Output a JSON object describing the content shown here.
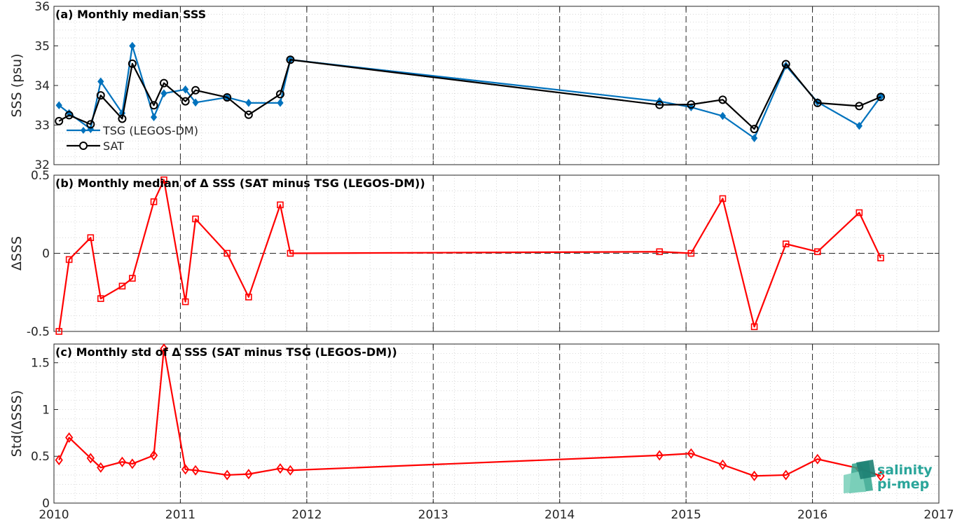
{
  "chart_data": [
    {
      "type": "line",
      "title": "(a) Monthly median SSS",
      "xlabel": "",
      "ylabel": "SSS (psu)",
      "xlim": [
        2010,
        2017
      ],
      "ylim": [
        32,
        36
      ],
      "yticks": [
        "32",
        "33",
        "34",
        "35",
        "36"
      ],
      "grid": true,
      "legend_position": "lower-left",
      "series": [
        {
          "name": "TSG (LEGOS-DM)",
          "color": "#0072BD",
          "marker": "diamond-filled",
          "x": [
            2010.04,
            2010.12,
            2010.29,
            2010.37,
            2010.54,
            2010.62,
            2010.79,
            2010.87,
            2011.04,
            2011.12,
            2011.37,
            2011.54,
            2011.79,
            2011.87,
            2014.79,
            2015.04,
            2015.29,
            2015.54,
            2015.79,
            2016.04,
            2016.37,
            2016.54
          ],
          "values": [
            33.5,
            33.3,
            32.9,
            34.1,
            33.3,
            35.0,
            33.2,
            33.8,
            33.9,
            33.57,
            33.7,
            33.56,
            33.56,
            34.65,
            33.6,
            33.45,
            33.23,
            32.67,
            34.5,
            33.58,
            32.98,
            33.72
          ]
        },
        {
          "name": "SAT",
          "color": "#000000",
          "marker": "circle-open",
          "x": [
            2010.04,
            2010.12,
            2010.29,
            2010.37,
            2010.54,
            2010.62,
            2010.79,
            2010.87,
            2011.04,
            2011.12,
            2011.37,
            2011.54,
            2011.79,
            2011.87,
            2014.79,
            2015.04,
            2015.29,
            2015.54,
            2015.79,
            2016.04,
            2016.37,
            2016.54
          ],
          "values": [
            33.1,
            33.25,
            33.02,
            33.75,
            33.16,
            34.55,
            33.5,
            34.06,
            33.6,
            33.88,
            33.7,
            33.26,
            33.78,
            34.65,
            33.51,
            33.52,
            33.64,
            32.9,
            34.54,
            33.56,
            33.48,
            33.71
          ]
        }
      ]
    },
    {
      "type": "line",
      "title": "(b) Monthly median of Δ SSS (SAT minus TSG (LEGOS-DM))",
      "xlabel": "",
      "ylabel": "ΔSSS",
      "xlim": [
        2010,
        2017
      ],
      "ylim": [
        -0.5,
        0.5
      ],
      "yticks": [
        "-0.5",
        "0",
        "0.5"
      ],
      "grid": true,
      "reference_line": 0,
      "series": [
        {
          "name": "",
          "color": "#FF0000",
          "marker": "square-open",
          "x": [
            2010.04,
            2010.12,
            2010.29,
            2010.37,
            2010.54,
            2010.62,
            2010.79,
            2010.87,
            2011.04,
            2011.12,
            2011.37,
            2011.54,
            2011.79,
            2011.87,
            2014.79,
            2015.04,
            2015.29,
            2015.54,
            2015.79,
            2016.04,
            2016.37,
            2016.54
          ],
          "values": [
            -0.5,
            -0.04,
            0.1,
            -0.29,
            -0.21,
            -0.16,
            0.33,
            0.47,
            -0.31,
            0.22,
            0.0,
            -0.28,
            0.31,
            0.0,
            0.01,
            0.0,
            0.35,
            -0.47,
            0.06,
            0.01,
            0.26,
            -0.03
          ]
        }
      ]
    },
    {
      "type": "line",
      "title": "(c) Monthly std of Δ SSS (SAT minus TSG (LEGOS-DM))",
      "xlabel": "",
      "ylabel": "Std(ΔSSS)",
      "xlim": [
        2010,
        2017
      ],
      "ylim": [
        0,
        1.7
      ],
      "yticks": [
        "0",
        "0.5",
        "1",
        "1.5"
      ],
      "xticks": [
        "2010",
        "2011",
        "2012",
        "2013",
        "2014",
        "2015",
        "2016",
        "2017"
      ],
      "grid": true,
      "series": [
        {
          "name": "",
          "color": "#FF0000",
          "marker": "diamond-open",
          "x": [
            2010.04,
            2010.12,
            2010.29,
            2010.37,
            2010.54,
            2010.62,
            2010.79,
            2010.87,
            2011.04,
            2011.12,
            2011.37,
            2011.54,
            2011.79,
            2011.87,
            2014.79,
            2015.04,
            2015.29,
            2015.54,
            2015.79,
            2016.04,
            2016.37,
            2016.54
          ],
          "values": [
            0.46,
            0.7,
            0.48,
            0.38,
            0.44,
            0.42,
            0.51,
            1.65,
            0.36,
            0.35,
            0.3,
            0.31,
            0.37,
            0.35,
            0.51,
            0.53,
            0.41,
            0.29,
            0.3,
            0.47,
            0.37,
            0.29
          ]
        }
      ]
    }
  ],
  "logo": {
    "line1": "salinity",
    "line2": "pi-mep"
  }
}
